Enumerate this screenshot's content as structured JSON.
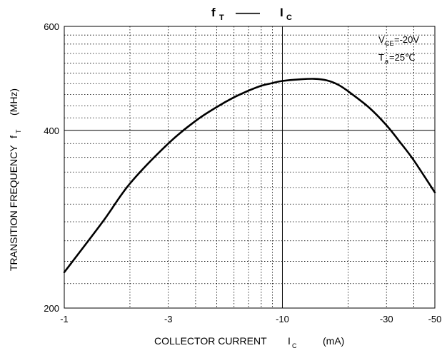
{
  "chart_data": {
    "type": "line",
    "title": {
      "left_main": "f",
      "left_sub": "T",
      "dash": "——",
      "right_main": "I",
      "right_sub": "C"
    },
    "xlabel": {
      "main": "COLLECTOR CURRENT",
      "symbol": "I",
      "symbol_sub": "C",
      "unit": "(mA)"
    },
    "ylabel": {
      "main": "TRANSITION FREQUENCY",
      "symbol": "f",
      "symbol_sub": "T",
      "unit": "(MHz)"
    },
    "x_scale": "log",
    "y_scale": "log",
    "xlim": [
      -1,
      -50
    ],
    "ylim": [
      200,
      600
    ],
    "x_ticks": [
      {
        "value": -1,
        "label": "-1"
      },
      {
        "value": -3,
        "label": "-3"
      },
      {
        "value": -10,
        "label": "-10"
      },
      {
        "value": -30,
        "label": "-30"
      },
      {
        "value": -50,
        "label": "-50"
      }
    ],
    "y_ticks": [
      {
        "value": 200,
        "label": "200"
      },
      {
        "value": 400,
        "label": "400"
      },
      {
        "value": 600,
        "label": "600"
      }
    ],
    "grid": true,
    "annotations": [
      {
        "main": "V",
        "sub": "CE",
        "rest": "=-20V"
      },
      {
        "main": "T",
        "sub": "a",
        "rest": "=25℃"
      }
    ],
    "series": [
      {
        "x": [
          -1,
          -1.5,
          -2,
          -3,
          -4,
          -5,
          -6,
          -7,
          -8,
          -9,
          -10,
          -12,
          -14,
          -16,
          -18,
          -20,
          -25,
          -30,
          -35,
          -40,
          -50
        ],
        "y": [
          230,
          280,
          325,
          380,
          415,
          438,
          455,
          467,
          476,
          481,
          485,
          488,
          489,
          486,
          478,
          466,
          437,
          408,
          380,
          356,
          314
        ]
      }
    ]
  }
}
